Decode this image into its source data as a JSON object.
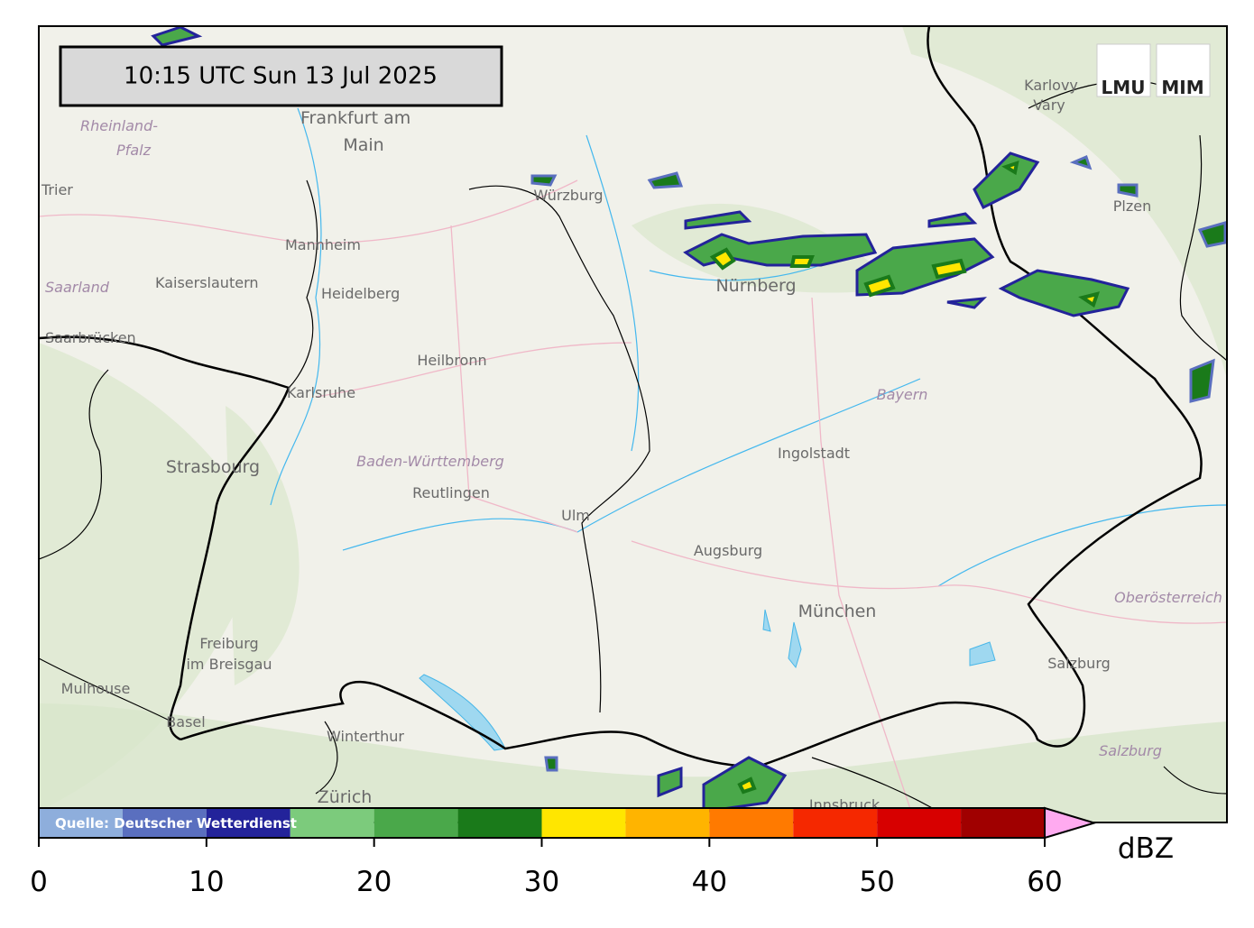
{
  "timestamp": "10:15 UTC  Sun 13 Jul 2025",
  "source": "Quelle: Deutscher Wetterdienst",
  "logos": [
    "LMU",
    "MIM"
  ],
  "places": [
    "Frankfurt am",
    "Main",
    "Rheinland-",
    "Pfalz",
    "Trier",
    "Würzburg",
    "Mannheim",
    "Kaiserslautern",
    "Heidelberg",
    "Saarland",
    "Saarbrücken",
    "Nürnberg",
    "Karlovy",
    "Vary",
    "Plzen",
    "Heilbronn",
    "Karlsruhe",
    "Bayern",
    "Ingolstadt",
    "Strasbourg",
    "Baden-Württemberg",
    "Reutlingen",
    "Ulm",
    "Augsburg",
    "München",
    "Oberösterreich",
    "Freiburg",
    "im Breisgau",
    "Mulhouse",
    "Basel",
    "Winterthur",
    "Zürich",
    "Salzburg",
    "Salzburg",
    "Innsbruck"
  ],
  "colorbar": {
    "unit": "dBZ",
    "lim": [
      0,
      60
    ],
    "ticks": [
      0,
      10,
      20,
      30,
      40,
      50,
      60
    ],
    "bounds": [
      0,
      5,
      10,
      15,
      20,
      25,
      30,
      35,
      40,
      45,
      50,
      55,
      60
    ],
    "colors": [
      "#8eaedc",
      "#5a6fbf",
      "#23239a",
      "#7ccb7c",
      "#4aa84a",
      "#1a7a1a",
      "#ffe600",
      "#ffb400",
      "#ff7a00",
      "#f52800",
      "#d70000",
      "#a00000"
    ],
    "extend_color": "#ffaaf0"
  }
}
